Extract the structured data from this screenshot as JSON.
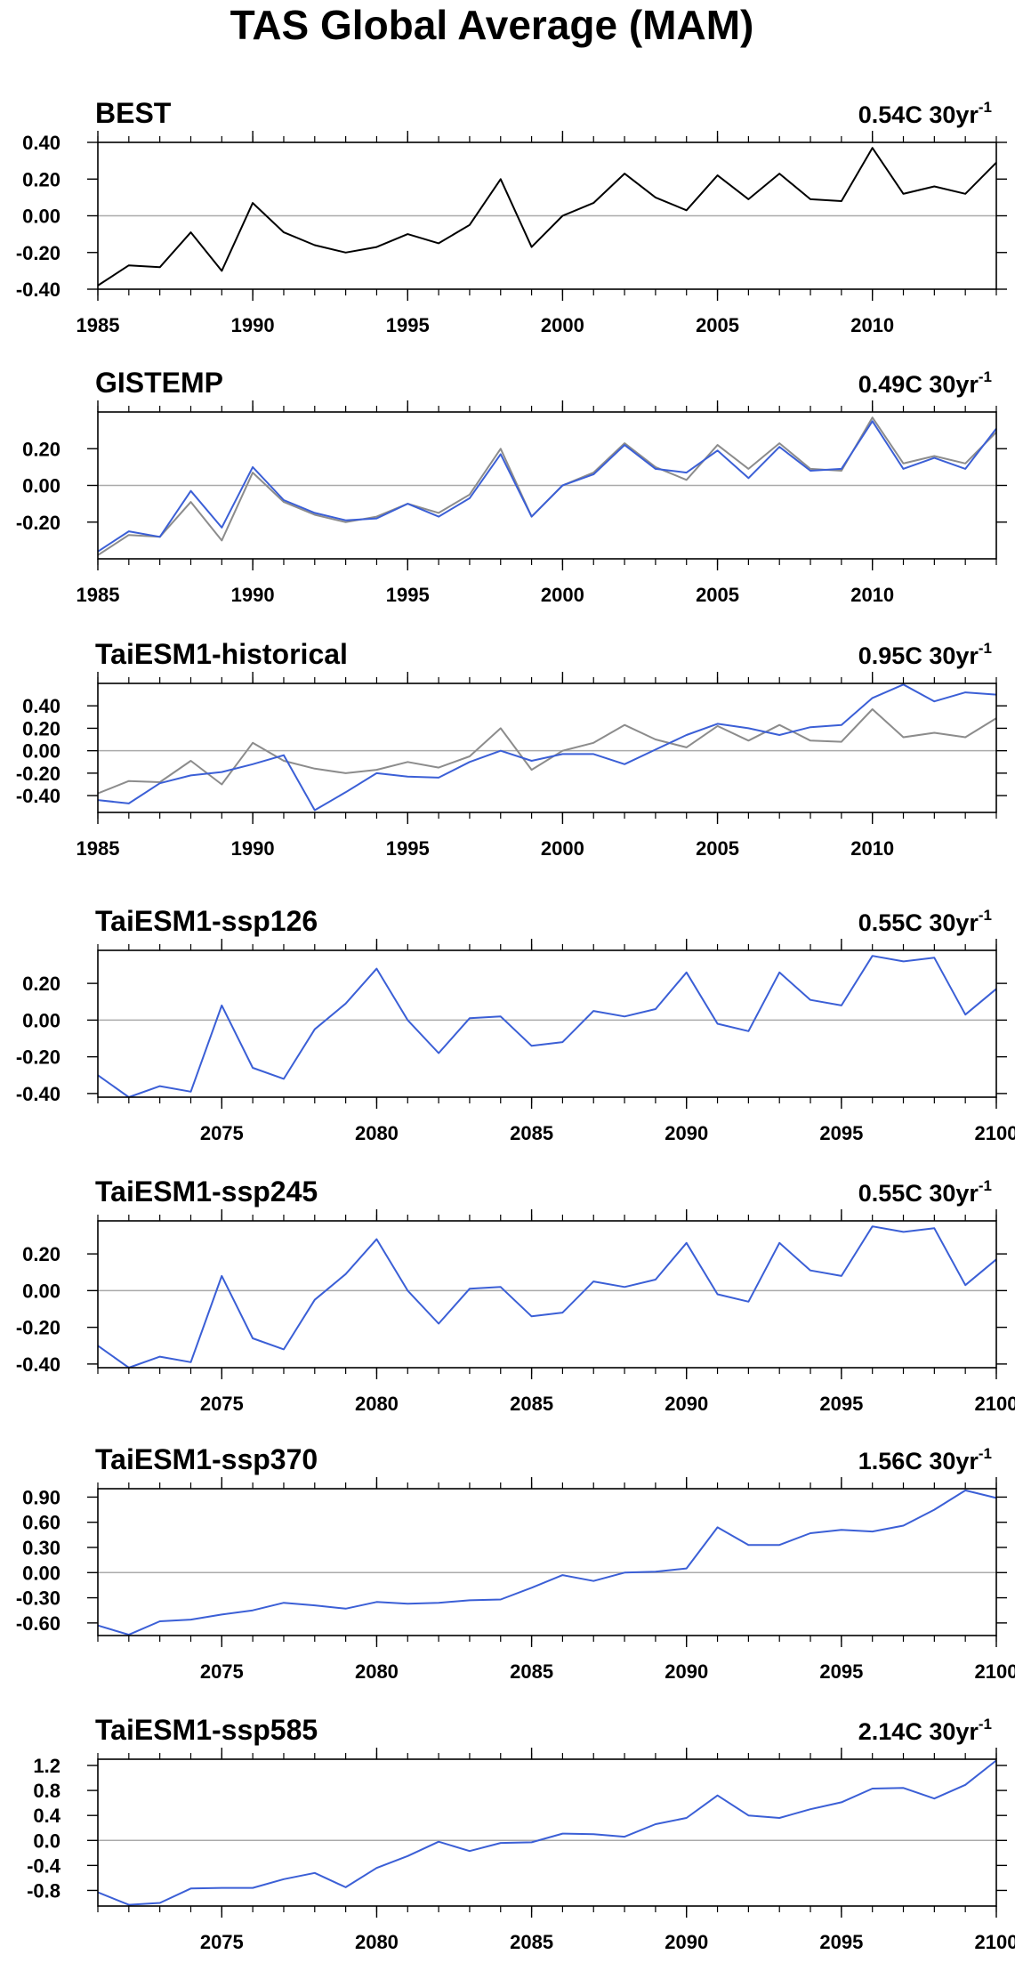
{
  "figure_title": "TAS Global Average (MAM)",
  "colors": {
    "observed": "#000000",
    "reference": "#8c8c8c",
    "model": "#3b5fd6",
    "zero_line": "#aaaaaa"
  },
  "chart_data": [
    {
      "type": "line",
      "title": "BEST",
      "trend": {
        "value": "0.54C",
        "unit": "30yr",
        "exp": "-1"
      },
      "xlim": [
        1985,
        2014
      ],
      "xticks": [
        "1985",
        "1990",
        "1995",
        "2000",
        "2005",
        "2010"
      ],
      "ylim": [
        -0.4,
        0.4
      ],
      "yticks": [
        "0.40",
        "0.20",
        "0.00",
        "-0.20",
        "-0.40"
      ],
      "series": [
        {
          "color": "#000000",
          "x": [
            1985,
            1986,
            1987,
            1988,
            1989,
            1990,
            1991,
            1992,
            1993,
            1994,
            1995,
            1996,
            1997,
            1998,
            1999,
            2000,
            2001,
            2002,
            2003,
            2004,
            2005,
            2006,
            2007,
            2008,
            2009,
            2010,
            2011,
            2012,
            2013,
            2014
          ],
          "values": [
            -0.38,
            -0.27,
            -0.28,
            -0.09,
            -0.3,
            0.07,
            -0.09,
            -0.16,
            -0.2,
            -0.17,
            -0.1,
            -0.15,
            -0.05,
            0.2,
            -0.17,
            0.0,
            0.07,
            0.23,
            0.1,
            0.03,
            0.22,
            0.09,
            0.23,
            0.09,
            0.08,
            0.37,
            0.12,
            0.16,
            0.12,
            0.29
          ]
        }
      ]
    },
    {
      "type": "line",
      "title": "GISTEMP",
      "trend": {
        "value": "0.49C",
        "unit": "30yr",
        "exp": "-1"
      },
      "xlim": [
        1985,
        2014
      ],
      "xticks": [
        "1985",
        "1990",
        "1995",
        "2000",
        "2005",
        "2010"
      ],
      "ylim": [
        -0.4,
        0.4
      ],
      "yticks": [
        "0.20",
        "0.00",
        "-0.20"
      ],
      "series": [
        {
          "color": "#8c8c8c",
          "x": [
            1985,
            1986,
            1987,
            1988,
            1989,
            1990,
            1991,
            1992,
            1993,
            1994,
            1995,
            1996,
            1997,
            1998,
            1999,
            2000,
            2001,
            2002,
            2003,
            2004,
            2005,
            2006,
            2007,
            2008,
            2009,
            2010,
            2011,
            2012,
            2013,
            2014
          ],
          "values": [
            -0.38,
            -0.27,
            -0.28,
            -0.09,
            -0.3,
            0.07,
            -0.09,
            -0.16,
            -0.2,
            -0.17,
            -0.1,
            -0.15,
            -0.05,
            0.2,
            -0.17,
            0.0,
            0.07,
            0.23,
            0.1,
            0.03,
            0.22,
            0.09,
            0.23,
            0.09,
            0.08,
            0.37,
            0.12,
            0.16,
            0.12,
            0.29
          ]
        },
        {
          "color": "#3b5fd6",
          "x": [
            1985,
            1986,
            1987,
            1988,
            1989,
            1990,
            1991,
            1992,
            1993,
            1994,
            1995,
            1996,
            1997,
            1998,
            1999,
            2000,
            2001,
            2002,
            2003,
            2004,
            2005,
            2006,
            2007,
            2008,
            2009,
            2010,
            2011,
            2012,
            2013,
            2014
          ],
          "values": [
            -0.36,
            -0.25,
            -0.28,
            -0.03,
            -0.23,
            0.1,
            -0.08,
            -0.15,
            -0.19,
            -0.18,
            -0.1,
            -0.17,
            -0.07,
            0.17,
            -0.17,
            0.0,
            0.06,
            0.22,
            0.09,
            0.07,
            0.19,
            0.04,
            0.21,
            0.08,
            0.09,
            0.35,
            0.09,
            0.15,
            0.09,
            0.31
          ]
        }
      ]
    },
    {
      "type": "line",
      "title": "TaiESM1-historical",
      "trend": {
        "value": "0.95C",
        "unit": "30yr",
        "exp": "-1"
      },
      "xlim": [
        1985,
        2014
      ],
      "xticks": [
        "1985",
        "1990",
        "1995",
        "2000",
        "2005",
        "2010"
      ],
      "ylim": [
        -0.55,
        0.6
      ],
      "yticks": [
        "0.40",
        "0.20",
        "0.00",
        "-0.20",
        "-0.40"
      ],
      "series": [
        {
          "color": "#8c8c8c",
          "x": [
            1985,
            1986,
            1987,
            1988,
            1989,
            1990,
            1991,
            1992,
            1993,
            1994,
            1995,
            1996,
            1997,
            1998,
            1999,
            2000,
            2001,
            2002,
            2003,
            2004,
            2005,
            2006,
            2007,
            2008,
            2009,
            2010,
            2011,
            2012,
            2013,
            2014
          ],
          "values": [
            -0.38,
            -0.27,
            -0.28,
            -0.09,
            -0.3,
            0.07,
            -0.09,
            -0.16,
            -0.2,
            -0.17,
            -0.1,
            -0.15,
            -0.05,
            0.2,
            -0.17,
            0.0,
            0.07,
            0.23,
            0.1,
            0.03,
            0.22,
            0.09,
            0.23,
            0.09,
            0.08,
            0.37,
            0.12,
            0.16,
            0.12,
            0.29
          ]
        },
        {
          "color": "#3b5fd6",
          "x": [
            1985,
            1986,
            1987,
            1988,
            1989,
            1990,
            1991,
            1992,
            1993,
            1994,
            1995,
            1996,
            1997,
            1998,
            1999,
            2000,
            2001,
            2002,
            2003,
            2004,
            2005,
            2006,
            2007,
            2008,
            2009,
            2010,
            2011,
            2012,
            2013,
            2014
          ],
          "values": [
            -0.44,
            -0.47,
            -0.29,
            -0.22,
            -0.19,
            -0.12,
            -0.04,
            -0.53,
            -0.37,
            -0.2,
            -0.23,
            -0.24,
            -0.1,
            0.0,
            -0.09,
            -0.03,
            -0.03,
            -0.12,
            0.01,
            0.14,
            0.24,
            0.2,
            0.14,
            0.21,
            0.23,
            0.47,
            0.59,
            0.44,
            0.52,
            0.5
          ]
        }
      ]
    },
    {
      "type": "line",
      "title": "TaiESM1-ssp126",
      "trend": {
        "value": "0.55C",
        "unit": "30yr",
        "exp": "-1"
      },
      "xlim": [
        2071,
        2100
      ],
      "xticks": [
        "2075",
        "2080",
        "2085",
        "2090",
        "2095",
        "2100"
      ],
      "ylim": [
        -0.42,
        0.38
      ],
      "yticks": [
        "0.20",
        "0.00",
        "-0.20",
        "-0.40"
      ],
      "series": [
        {
          "color": "#3b5fd6",
          "x": [
            2071,
            2072,
            2073,
            2074,
            2075,
            2076,
            2077,
            2078,
            2079,
            2080,
            2081,
            2082,
            2083,
            2084,
            2085,
            2086,
            2087,
            2088,
            2089,
            2090,
            2091,
            2092,
            2093,
            2094,
            2095,
            2096,
            2097,
            2098,
            2099,
            2100
          ],
          "values": [
            -0.3,
            -0.42,
            -0.36,
            -0.39,
            0.08,
            -0.26,
            -0.32,
            -0.05,
            0.09,
            0.28,
            0.0,
            -0.18,
            0.01,
            0.02,
            -0.14,
            -0.12,
            0.05,
            0.02,
            0.06,
            0.26,
            -0.02,
            -0.06,
            0.26,
            0.11,
            0.08,
            0.35,
            0.32,
            0.34,
            0.03,
            0.17
          ]
        }
      ]
    },
    {
      "type": "line",
      "title": "TaiESM1-ssp245",
      "trend": {
        "value": "0.55C",
        "unit": "30yr",
        "exp": "-1"
      },
      "xlim": [
        2071,
        2100
      ],
      "xticks": [
        "2075",
        "2080",
        "2085",
        "2090",
        "2095",
        "2100"
      ],
      "ylim": [
        -0.42,
        0.38
      ],
      "yticks": [
        "0.20",
        "0.00",
        "-0.20",
        "-0.40"
      ],
      "series": [
        {
          "color": "#3b5fd6",
          "x": [
            2071,
            2072,
            2073,
            2074,
            2075,
            2076,
            2077,
            2078,
            2079,
            2080,
            2081,
            2082,
            2083,
            2084,
            2085,
            2086,
            2087,
            2088,
            2089,
            2090,
            2091,
            2092,
            2093,
            2094,
            2095,
            2096,
            2097,
            2098,
            2099,
            2100
          ],
          "values": [
            -0.3,
            -0.42,
            -0.36,
            -0.39,
            0.08,
            -0.26,
            -0.32,
            -0.05,
            0.09,
            0.28,
            0.0,
            -0.18,
            0.01,
            0.02,
            -0.14,
            -0.12,
            0.05,
            0.02,
            0.06,
            0.26,
            -0.02,
            -0.06,
            0.26,
            0.11,
            0.08,
            0.35,
            0.32,
            0.34,
            0.03,
            0.17
          ]
        }
      ]
    },
    {
      "type": "line",
      "title": "TaiESM1-ssp370",
      "trend": {
        "value": "1.56C",
        "unit": "30yr",
        "exp": "-1"
      },
      "xlim": [
        2071,
        2100
      ],
      "xticks": [
        "2075",
        "2080",
        "2085",
        "2090",
        "2095",
        "2100"
      ],
      "ylim": [
        -0.75,
        1.0
      ],
      "yticks": [
        "0.90",
        "0.60",
        "0.30",
        "0.00",
        "-0.30",
        "-0.60"
      ],
      "series": [
        {
          "color": "#3b5fd6",
          "x": [
            2071,
            2072,
            2073,
            2074,
            2075,
            2076,
            2077,
            2078,
            2079,
            2080,
            2081,
            2082,
            2083,
            2084,
            2085,
            2086,
            2087,
            2088,
            2089,
            2090,
            2091,
            2092,
            2093,
            2094,
            2095,
            2096,
            2097,
            2098,
            2099,
            2100
          ],
          "values": [
            -0.63,
            -0.74,
            -0.58,
            -0.56,
            -0.5,
            -0.45,
            -0.36,
            -0.39,
            -0.43,
            -0.35,
            -0.37,
            -0.36,
            -0.33,
            -0.32,
            -0.18,
            -0.03,
            -0.1,
            0.0,
            0.01,
            0.05,
            0.54,
            0.33,
            0.33,
            0.47,
            0.51,
            0.49,
            0.56,
            0.75,
            0.98,
            0.89
          ]
        }
      ]
    },
    {
      "type": "line",
      "title": "TaiESM1-ssp585",
      "trend": {
        "value": "2.14C",
        "unit": "30yr",
        "exp": "-1"
      },
      "xlim": [
        2071,
        2100
      ],
      "xticks": [
        "2075",
        "2080",
        "2085",
        "2090",
        "2095",
        "2100"
      ],
      "ylim": [
        -1.05,
        1.3
      ],
      "yticks": [
        "1.2",
        "0.8",
        "0.4",
        "0.0",
        "-0.4",
        "-0.8"
      ],
      "series": [
        {
          "color": "#3b5fd6",
          "x": [
            2071,
            2072,
            2073,
            2074,
            2075,
            2076,
            2077,
            2078,
            2079,
            2080,
            2081,
            2082,
            2083,
            2084,
            2085,
            2086,
            2087,
            2088,
            2089,
            2090,
            2091,
            2092,
            2093,
            2094,
            2095,
            2096,
            2097,
            2098,
            2099,
            2100
          ],
          "values": [
            -0.83,
            -1.03,
            -1.0,
            -0.77,
            -0.76,
            -0.76,
            -0.62,
            -0.52,
            -0.75,
            -0.44,
            -0.25,
            -0.02,
            -0.17,
            -0.04,
            -0.03,
            0.11,
            0.1,
            0.06,
            0.26,
            0.36,
            0.72,
            0.4,
            0.36,
            0.5,
            0.61,
            0.83,
            0.84,
            0.67,
            0.89,
            1.28
          ]
        }
      ]
    }
  ]
}
